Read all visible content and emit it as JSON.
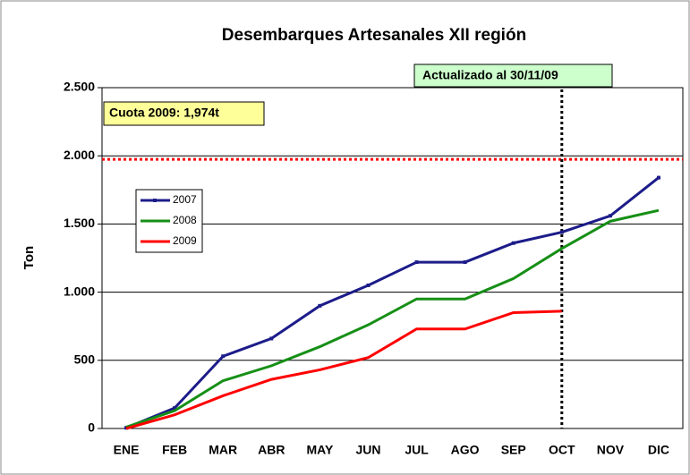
{
  "chart_data": {
    "type": "line",
    "title": "Desembarques Artesanales XII región",
    "y_label": "Ton",
    "annotations": [
      "Actualizado al 30/11/09",
      "Cuota 2009: 1,974t"
    ],
    "quota_line": 1974,
    "categories": [
      "ENE",
      "FEB",
      "MAR",
      "ABR",
      "MAY",
      "JUN",
      "JUL",
      "AGO",
      "SEP",
      "OCT",
      "NOV",
      "DIC"
    ],
    "series": [
      {
        "name": "2007",
        "color": "#1c1c8a",
        "values": [
          5,
          150,
          530,
          660,
          900,
          1050,
          1220,
          1220,
          1360,
          1440,
          1560,
          1840
        ]
      },
      {
        "name": "2008",
        "color": "#168f16",
        "values": [
          10,
          130,
          350,
          460,
          600,
          760,
          950,
          950,
          1100,
          1320,
          1520,
          1600
        ]
      },
      {
        "name": "2009",
        "color": "#ff0000",
        "values": [
          0,
          100,
          240,
          360,
          430,
          520,
          730,
          730,
          850,
          860,
          null,
          null
        ]
      }
    ],
    "ylim": [
      0,
      2500
    ],
    "yticks": [
      0,
      500,
      {
        "value": 1000,
        "label": "1.000"
      },
      {
        "value": 1500,
        "label": "1.500"
      },
      {
        "value": 2000,
        "label": "2.000"
      },
      {
        "value": 2500,
        "label": "2.500"
      }
    ],
    "grid": true
  }
}
